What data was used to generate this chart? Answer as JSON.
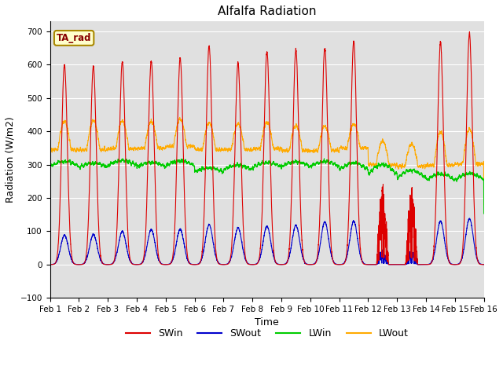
{
  "title": "Alfalfa Radiation",
  "ylabel": "Radiation (W/m2)",
  "xlabel": "Time",
  "ylim": [
    -100,
    730
  ],
  "yticks": [
    -100,
    0,
    100,
    200,
    300,
    400,
    500,
    600,
    700
  ],
  "xtick_labels": [
    "Feb 1",
    "Feb 2",
    "Feb 3",
    "Feb 4",
    "Feb 5",
    "Feb 6",
    "Feb 7",
    "Feb 8",
    "Feb 9",
    "Feb 10",
    "Feb 11",
    "Feb 12",
    "Feb 13",
    "Feb 14",
    "Feb 15",
    "Feb 16"
  ],
  "annotation_label": "TA_rad",
  "bg_color": "#e0e0e0",
  "colors": {
    "SWin": "#dd0000",
    "SWout": "#0000cc",
    "LWin": "#00cc00",
    "LWout": "#ffaa00"
  },
  "n_days": 15,
  "points_per_day": 480
}
